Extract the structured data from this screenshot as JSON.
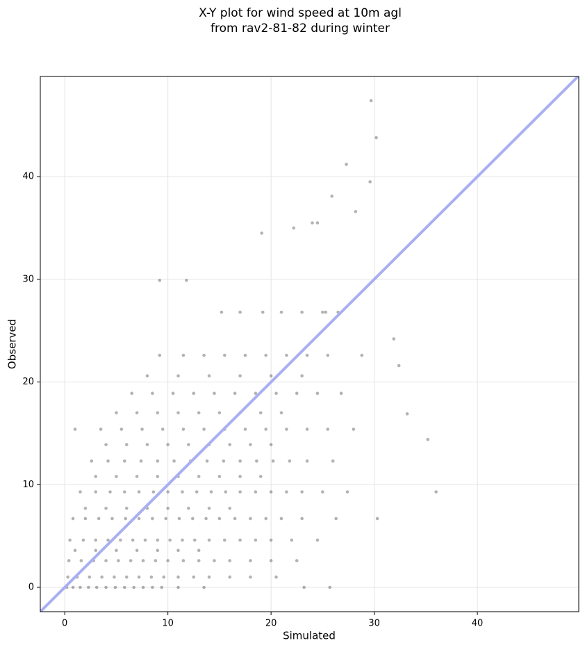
{
  "chart_data": {
    "type": "scatter",
    "title": [
      "X-Y plot for wind speed at 10m agl",
      "from rav2-81-82 during winter"
    ],
    "x_label": "Simulated",
    "y_label": "Observed",
    "xlim": [
      -2.37,
      49.83
    ],
    "ylim": [
      -2.37,
      49.76
    ],
    "xticks": [
      0,
      10,
      20,
      30,
      40
    ],
    "yticks": [
      0,
      10,
      20,
      30,
      40
    ],
    "grid": true,
    "color": "#000000",
    "opacity": 0.3,
    "line_color": "#a9aff2",
    "x": [
      0.2,
      0.8,
      1.5,
      2.3,
      3.1,
      4,
      4.9,
      5.8,
      6.7,
      7.6,
      8.5,
      9.4,
      11,
      13.5,
      0.3,
      1.2,
      2.4,
      3.6,
      4.8,
      6,
      7.2,
      8.4,
      9.6,
      11,
      12.5,
      14,
      16,
      18,
      20.5,
      0.4,
      1.6,
      2.8,
      4,
      5.2,
      6.4,
      7.6,
      8.8,
      10,
      11.5,
      13,
      14.5,
      16,
      18,
      20,
      22.5,
      1,
      3,
      5,
      7,
      9,
      11,
      13,
      0.5,
      1.8,
      3,
      4.2,
      5.4,
      6.6,
      7.8,
      9,
      10.2,
      11.4,
      12.6,
      14,
      15.5,
      17,
      18.5,
      20,
      22,
      24.5,
      0.8,
      2,
      3.3,
      4.6,
      5.9,
      7.2,
      8.5,
      9.8,
      11.1,
      12.4,
      13.7,
      15,
      16.5,
      18,
      19.5,
      21,
      23,
      26.3,
      2,
      4,
      6,
      8,
      10,
      12,
      14,
      16,
      1.5,
      3,
      4.4,
      5.8,
      7.2,
      8.6,
      10,
      11.4,
      12.8,
      14.2,
      15.6,
      17,
      18.5,
      20,
      21.5,
      23,
      25,
      27.4,
      3,
      5,
      7,
      9,
      11,
      13,
      15,
      17,
      19,
      2.6,
      4.2,
      5.8,
      7.4,
      9,
      10.6,
      12.2,
      13.8,
      15.4,
      17,
      18.6,
      20.2,
      21.8,
      23.5,
      26,
      4,
      6,
      8,
      10,
      12,
      14,
      16,
      18,
      20,
      1,
      3.5,
      5.5,
      7.5,
      9.5,
      11.5,
      13.5,
      15.5,
      17.5,
      19.5,
      21.5,
      23.5,
      25.5,
      28,
      5,
      7,
      9,
      11,
      13,
      15,
      17,
      19,
      21,
      6.5,
      8.5,
      10.5,
      12.5,
      14.5,
      16.5,
      18.5,
      20.5,
      22.5,
      24.5,
      26.8,
      8,
      11,
      14,
      17,
      20,
      23,
      9.2,
      11.5,
      13.5,
      15.5,
      17.5,
      19.5,
      21.5,
      23.5,
      25.5,
      28.8,
      15.2,
      17,
      19.2,
      21,
      23,
      25,
      26.5,
      29.7,
      30.2,
      27.3,
      29.6,
      28.2,
      25.9,
      36,
      35.2,
      30.3,
      33.2,
      31.9,
      32.4,
      9.2,
      11.8,
      19.1,
      22.2,
      24,
      24.5,
      25.3,
      23.2,
      25.7
    ],
    "values": [
      0,
      0,
      0,
      0,
      0,
      0,
      0,
      0,
      0,
      0,
      0,
      0,
      0,
      0,
      1,
      1,
      1,
      1,
      1,
      1,
      1,
      1,
      1,
      1,
      1,
      1,
      1,
      1,
      1,
      2.6,
      2.6,
      2.6,
      2.6,
      2.6,
      2.6,
      2.6,
      2.6,
      2.6,
      2.6,
      2.6,
      2.6,
      2.6,
      2.6,
      2.6,
      2.6,
      3.6,
      3.6,
      3.6,
      3.6,
      3.6,
      3.6,
      3.6,
      4.6,
      4.6,
      4.6,
      4.6,
      4.6,
      4.6,
      4.6,
      4.6,
      4.6,
      4.6,
      4.6,
      4.6,
      4.6,
      4.6,
      4.6,
      4.6,
      4.6,
      4.6,
      6.7,
      6.7,
      6.7,
      6.7,
      6.7,
      6.7,
      6.7,
      6.7,
      6.7,
      6.7,
      6.7,
      6.7,
      6.7,
      6.7,
      6.7,
      6.7,
      6.7,
      6.7,
      7.7,
      7.7,
      7.7,
      7.7,
      7.7,
      7.7,
      7.7,
      7.7,
      9.3,
      9.3,
      9.3,
      9.3,
      9.3,
      9.3,
      9.3,
      9.3,
      9.3,
      9.3,
      9.3,
      9.3,
      9.3,
      9.3,
      9.3,
      9.3,
      9.3,
      9.3,
      10.8,
      10.8,
      10.8,
      10.8,
      10.8,
      10.8,
      10.8,
      10.8,
      10.8,
      12.3,
      12.3,
      12.3,
      12.3,
      12.3,
      12.3,
      12.3,
      12.3,
      12.3,
      12.3,
      12.3,
      12.3,
      12.3,
      12.3,
      12.3,
      13.9,
      13.9,
      13.9,
      13.9,
      13.9,
      13.9,
      13.9,
      13.9,
      13.9,
      15.4,
      15.4,
      15.4,
      15.4,
      15.4,
      15.4,
      15.4,
      15.4,
      15.4,
      15.4,
      15.4,
      15.4,
      15.4,
      15.4,
      17,
      17,
      17,
      17,
      17,
      17,
      17,
      17,
      17,
      18.9,
      18.9,
      18.9,
      18.9,
      18.9,
      18.9,
      18.9,
      18.9,
      18.9,
      18.9,
      18.9,
      20.6,
      20.6,
      20.6,
      20.6,
      20.6,
      20.6,
      22.6,
      22.6,
      22.6,
      22.6,
      22.6,
      22.6,
      22.6,
      22.6,
      22.6,
      22.6,
      26.8,
      26.8,
      26.8,
      26.8,
      26.8,
      26.8,
      26.8,
      47.4,
      43.8,
      41.2,
      39.5,
      36.6,
      38.1,
      9.3,
      14.4,
      6.7,
      16.9,
      24.2,
      21.6,
      29.9,
      29.9,
      34.5,
      35,
      35.5,
      35.5,
      26.8,
      0,
      0
    ]
  }
}
